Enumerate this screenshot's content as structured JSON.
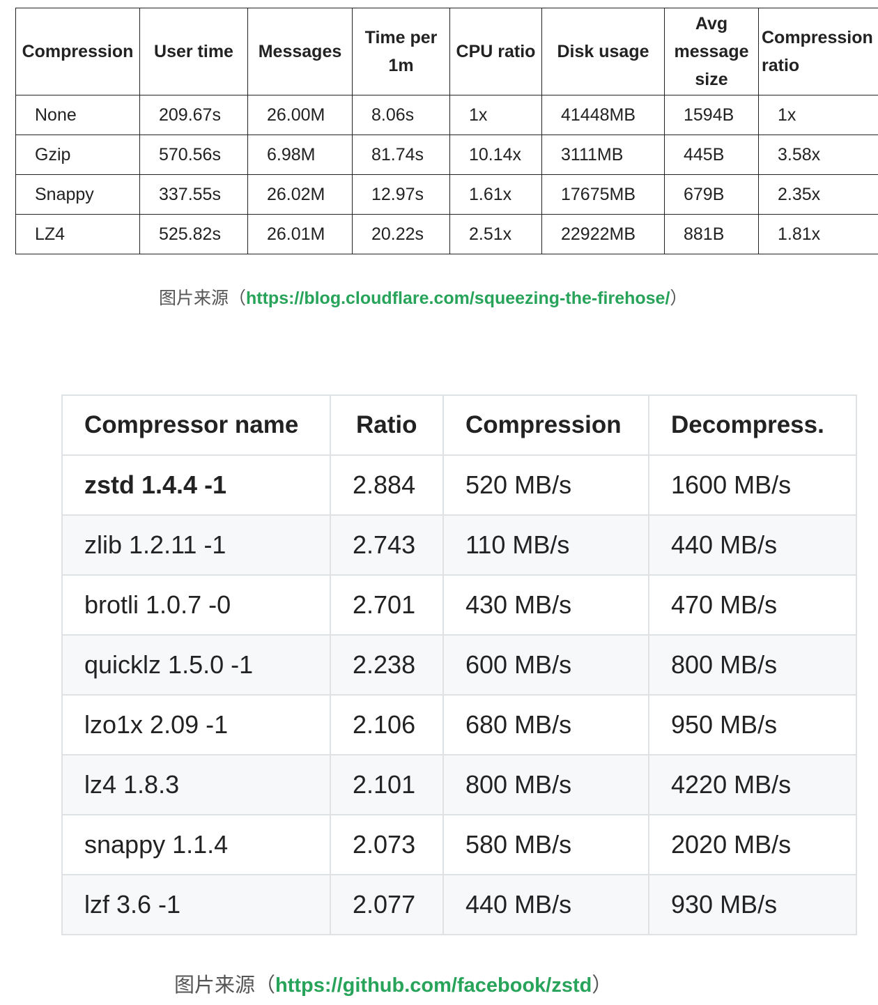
{
  "table1": {
    "headers": [
      "Compression",
      "User time",
      "Messages",
      "Time per 1m",
      "CPU ratio",
      "Disk usage",
      "Avg message size",
      "Compression ratio"
    ],
    "rows": [
      [
        "None",
        "209.67s",
        "26.00M",
        "8.06s",
        "1x",
        "41448MB",
        "1594B",
        "1x"
      ],
      [
        "Gzip",
        "570.56s",
        "6.98M",
        "81.74s",
        "10.14x",
        "3111MB",
        "445B",
        "3.58x"
      ],
      [
        "Snappy",
        "337.55s",
        "26.02M",
        "12.97s",
        "1.61x",
        "17675MB",
        "679B",
        "2.35x"
      ],
      [
        "LZ4",
        "525.82s",
        "26.01M",
        "20.22s",
        "2.51x",
        "22922MB",
        "881B",
        "1.81x"
      ]
    ]
  },
  "caption1": {
    "prefix": "图片来源（",
    "link": "https://blog.cloudflare.com/squeezing-the-firehose/",
    "suffix": "）"
  },
  "table2": {
    "headers": [
      "Compressor name",
      "Ratio",
      "Compression",
      "Decompress."
    ],
    "rows": [
      [
        "zstd 1.4.4 -1",
        "2.884",
        "520 MB/s",
        "1600 MB/s"
      ],
      [
        "zlib 1.2.11 -1",
        "2.743",
        "110 MB/s",
        "440 MB/s"
      ],
      [
        "brotli 1.0.7 -0",
        "2.701",
        "430 MB/s",
        "470 MB/s"
      ],
      [
        "quicklz 1.5.0 -1",
        "2.238",
        "600 MB/s",
        "800 MB/s"
      ],
      [
        "lzo1x 2.09 -1",
        "2.106",
        "680 MB/s",
        "950 MB/s"
      ],
      [
        "lz4 1.8.3",
        "2.101",
        "800 MB/s",
        "4220 MB/s"
      ],
      [
        "snappy 1.1.4",
        "2.073",
        "580 MB/s",
        "2020 MB/s"
      ],
      [
        "lzf 3.6 -1",
        "2.077",
        "440 MB/s",
        "930 MB/s"
      ]
    ]
  },
  "caption2": {
    "prefix": "图片来源（",
    "link": "https://github.com/facebook/zstd",
    "suffix": "）"
  },
  "colors": {
    "link": "#27a35a",
    "stripe": "#f6f8fa",
    "border_light": "#dfe2e5"
  }
}
